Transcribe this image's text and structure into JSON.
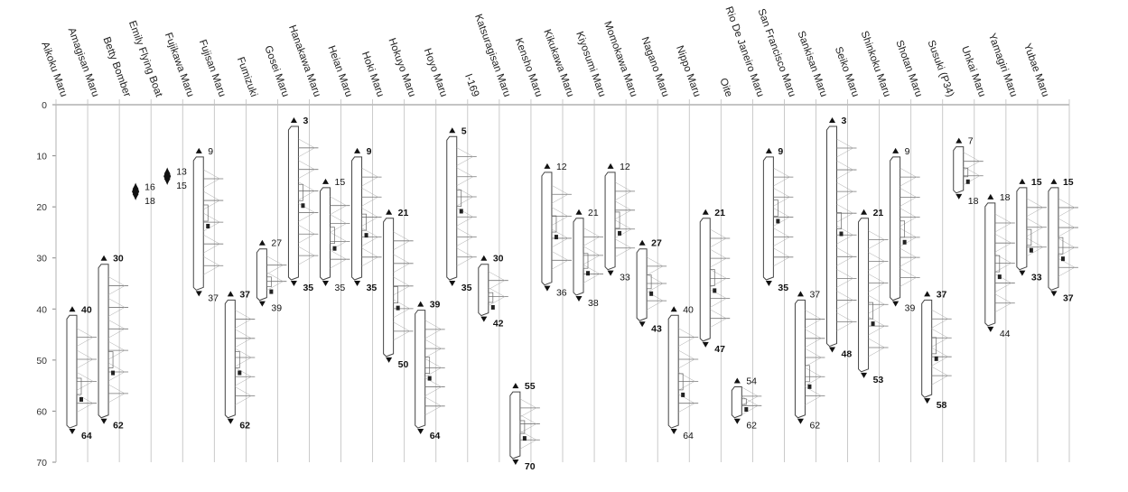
{
  "chart_data": {
    "type": "range",
    "title": "",
    "xlabel": "",
    "ylabel": "",
    "ylim": [
      0,
      70
    ],
    "yticks": [
      0,
      10,
      20,
      30,
      40,
      50,
      60,
      70
    ],
    "grid": false,
    "colors": {
      "line": "#888888",
      "ship": "#444444",
      "text": "#222222"
    },
    "categories": [
      "Aikoku Maru",
      "Amagisan Maru",
      "Betty Bomber",
      "Emily Flying Boat",
      "Fujikawa Maru",
      "Fujisan Maru",
      "Fumizuki",
      "Gosei Maru",
      "Hanakawa Maru",
      "Heian Maru",
      "Hoki Maru",
      "Hokuyo Maru",
      "Hoyo Maru",
      "I-169",
      "Katsuragisan Maru",
      "Kensho Maru",
      "Kikukawa Maru",
      "Kiyosumi Maru",
      "Momokawa Maru",
      "Nagano Maru",
      "Nippo Maru",
      "Oite",
      "Rio De Janeiro Maru",
      "San Francisco Maru",
      "Sankisan Maru",
      "Seiko Maru",
      "Shinkoku Maru",
      "Shotan Maru",
      "Susuki (P34)",
      "Unkai Maru",
      "Yamagiri Maru",
      "Yubae Maru"
    ],
    "ranges": [
      {
        "name": "Aikoku Maru",
        "min": 40,
        "max": 64,
        "min_label": "40",
        "max_label": "64",
        "has_ship": true
      },
      {
        "name": "Amagisan Maru",
        "min": 30,
        "max": 62,
        "min_label": "30",
        "max_label": "62",
        "has_ship": true
      },
      {
        "name": "Betty Bomber",
        "min": 16,
        "max": 18,
        "min_label": "16",
        "max_label": "18",
        "has_ship": false
      },
      {
        "name": "Emily Flying Boat",
        "min": 13,
        "max": 15,
        "min_label": "13",
        "max_label": "15",
        "has_ship": false
      },
      {
        "name": "Fujikawa Maru",
        "min": 9,
        "max": 37,
        "min_label": "9",
        "max_label": "37",
        "has_ship": true
      },
      {
        "name": "Fujisan Maru",
        "min": 37,
        "max": 62,
        "min_label": "37",
        "max_label": "62",
        "has_ship": true
      },
      {
        "name": "Fumizuki",
        "min": 27,
        "max": 39,
        "min_label": "27",
        "max_label": "39",
        "has_ship": true
      },
      {
        "name": "Gosei Maru",
        "min": 3,
        "max": 35,
        "min_label": "3",
        "max_label": "35",
        "has_ship": true
      },
      {
        "name": "Hanakawa Maru",
        "min": 15,
        "max": 35,
        "min_label": "15",
        "max_label": "35",
        "has_ship": true
      },
      {
        "name": "Heian Maru",
        "min": 9,
        "max": 35,
        "min_label": "9",
        "max_label": "35",
        "has_ship": true
      },
      {
        "name": "Hoki Maru",
        "min": 21,
        "max": 50,
        "min_label": "21",
        "max_label": "50",
        "has_ship": true
      },
      {
        "name": "Hokuyo Maru",
        "min": 39,
        "max": 64,
        "min_label": "39",
        "max_label": "64",
        "has_ship": true
      },
      {
        "name": "Hoyo Maru",
        "min": 5,
        "max": 35,
        "min_label": "5",
        "max_label": "35",
        "has_ship": true
      },
      {
        "name": "I-169",
        "min": 30,
        "max": 42,
        "min_label": "30",
        "max_label": "42",
        "has_ship": true
      },
      {
        "name": "Katsuragisan Maru",
        "min": 55,
        "max": 70,
        "min_label": "55",
        "max_label": "70",
        "has_ship": true
      },
      {
        "name": "Kensho Maru",
        "min": 12,
        "max": 36,
        "min_label": "12",
        "max_label": "36",
        "has_ship": true
      },
      {
        "name": "Kikukawa Maru",
        "min": 21,
        "max": 38,
        "min_label": "21",
        "max_label": "38",
        "has_ship": true
      },
      {
        "name": "Kiyosumi Maru",
        "min": 12,
        "max": 33,
        "min_label": "12",
        "max_label": "33",
        "has_ship": true
      },
      {
        "name": "Momokawa Maru",
        "min": 27,
        "max": 43,
        "min_label": "27",
        "max_label": "43",
        "has_ship": true
      },
      {
        "name": "Nagano Maru",
        "min": 40,
        "max": 64,
        "min_label": "40",
        "max_label": "64",
        "has_ship": true
      },
      {
        "name": "Nippo Maru",
        "min": 21,
        "max": 47,
        "min_label": "21",
        "max_label": "47",
        "has_ship": true
      },
      {
        "name": "Oite",
        "min": 54,
        "max": 62,
        "min_label": "54",
        "max_label": "62",
        "has_ship": true
      },
      {
        "name": "Rio De Janeiro Maru",
        "min": 9,
        "max": 35,
        "min_label": "9",
        "max_label": "35",
        "has_ship": true
      },
      {
        "name": "San Francisco Maru",
        "min": 37,
        "max": 62,
        "min_label": "37",
        "max_label": "62",
        "has_ship": true
      },
      {
        "name": "Sankisan Maru",
        "min": 3,
        "max": 48,
        "min_label": "3",
        "max_label": "48",
        "has_ship": true
      },
      {
        "name": "Seiko Maru",
        "min": 21,
        "max": 53,
        "min_label": "21",
        "max_label": "53",
        "has_ship": true
      },
      {
        "name": "Shinkoku Maru",
        "min": 9,
        "max": 39,
        "min_label": "9",
        "max_label": "39",
        "has_ship": true
      },
      {
        "name": "Shotan Maru",
        "min": 37,
        "max": 58,
        "min_label": "37",
        "max_label": "58",
        "has_ship": true
      },
      {
        "name": "Susuki (P34)",
        "min": 7,
        "max": 18,
        "min_label": "7",
        "max_label": "18",
        "has_ship": true
      },
      {
        "name": "Unkai Maru",
        "min": 18,
        "max": 44,
        "min_label": "18",
        "max_label": "44",
        "has_ship": true
      },
      {
        "name": "Yamagiri Maru",
        "min": 15,
        "max": 33,
        "min_label": "15",
        "max_label": "33",
        "has_ship": true
      },
      {
        "name": "Yubae Maru",
        "min": 15,
        "max": 37,
        "min_label": "15",
        "max_label": "37",
        "has_ship": true
      }
    ]
  }
}
